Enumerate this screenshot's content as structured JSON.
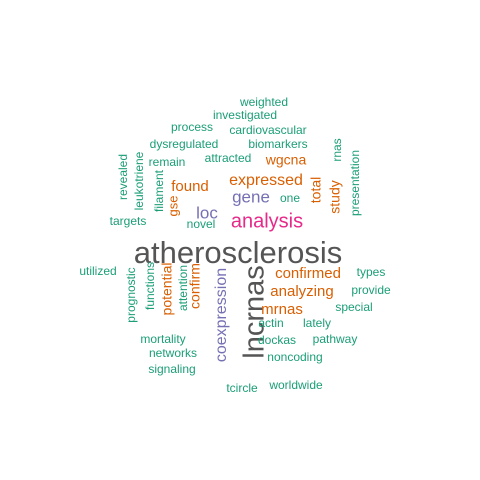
{
  "palette": {
    "teal": "#1b9e77",
    "orange": "#d95f02",
    "purple": "#7570b3",
    "magenta": "#e7298a",
    "gray": "#555555"
  },
  "words": [
    {
      "text": "atherosclerosis",
      "color": "gray"
    },
    {
      "text": "lncrnas",
      "color": "gray"
    },
    {
      "text": "analysis",
      "color": "magenta"
    },
    {
      "text": "coexpression",
      "color": "purple"
    },
    {
      "text": "gene",
      "color": "purple"
    },
    {
      "text": "loc",
      "color": "purple"
    },
    {
      "text": "expressed",
      "color": "orange"
    },
    {
      "text": "found",
      "color": "orange"
    },
    {
      "text": "confirmed",
      "color": "orange"
    },
    {
      "text": "analyzing",
      "color": "orange"
    },
    {
      "text": "mrnas",
      "color": "orange"
    },
    {
      "text": "wgcna",
      "color": "orange"
    },
    {
      "text": "total",
      "color": "orange"
    },
    {
      "text": "study",
      "color": "orange"
    },
    {
      "text": "gse",
      "color": "orange"
    },
    {
      "text": "potential",
      "color": "orange"
    },
    {
      "text": "confirm",
      "color": "orange"
    },
    {
      "text": "weighted",
      "color": "teal"
    },
    {
      "text": "investigated",
      "color": "teal"
    },
    {
      "text": "process",
      "color": "teal"
    },
    {
      "text": "cardiovascular",
      "color": "teal"
    },
    {
      "text": "dysregulated",
      "color": "teal"
    },
    {
      "text": "biomarkers",
      "color": "teal"
    },
    {
      "text": "remain",
      "color": "teal"
    },
    {
      "text": "attracted",
      "color": "teal"
    },
    {
      "text": "rnas",
      "color": "teal"
    },
    {
      "text": "presentation",
      "color": "teal"
    },
    {
      "text": "revealed",
      "color": "teal"
    },
    {
      "text": "leukotriene",
      "color": "teal"
    },
    {
      "text": "filament",
      "color": "teal"
    },
    {
      "text": "one",
      "color": "teal"
    },
    {
      "text": "targets",
      "color": "teal"
    },
    {
      "text": "novel",
      "color": "teal"
    },
    {
      "text": "utilized",
      "color": "teal"
    },
    {
      "text": "prognostic",
      "color": "teal"
    },
    {
      "text": "functions",
      "color": "teal"
    },
    {
      "text": "attention",
      "color": "teal"
    },
    {
      "text": "types",
      "color": "teal"
    },
    {
      "text": "provide",
      "color": "teal"
    },
    {
      "text": "special",
      "color": "teal"
    },
    {
      "text": "actin",
      "color": "teal"
    },
    {
      "text": "lately",
      "color": "teal"
    },
    {
      "text": "mortality",
      "color": "teal"
    },
    {
      "text": "dockas",
      "color": "teal"
    },
    {
      "text": "pathway",
      "color": "teal"
    },
    {
      "text": "networks",
      "color": "teal"
    },
    {
      "text": "noncoding",
      "color": "teal"
    },
    {
      "text": "signaling",
      "color": "teal"
    },
    {
      "text": "tcircle",
      "color": "teal"
    },
    {
      "text": "worldwide",
      "color": "teal"
    }
  ]
}
